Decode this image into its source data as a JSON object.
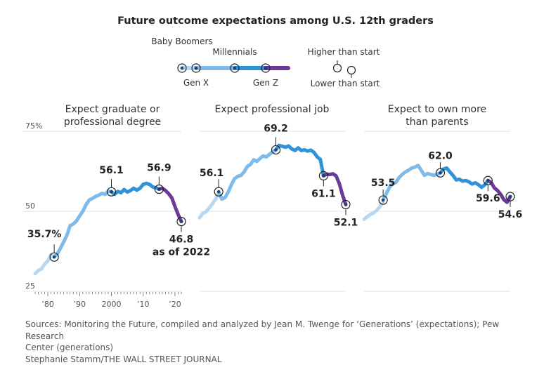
{
  "title": "Future outcome expectations among U.S. 12th graders",
  "legend": {
    "generations": [
      {
        "name": "Baby Boomers",
        "color": "#b9d8f0"
      },
      {
        "name": "Gen X",
        "color": "#7fbbea"
      },
      {
        "name": "Millennials",
        "color": "#2f93d8"
      },
      {
        "name": "Gen Z",
        "color": "#6a3a96"
      }
    ],
    "higher_label": "Higher than start",
    "lower_label": "Lower than start"
  },
  "y_ticks": [
    {
      "value": 75,
      "label": "75%"
    },
    {
      "value": 50,
      "label": "50"
    },
    {
      "value": 25,
      "label": "25"
    }
  ],
  "x_ticks": [
    {
      "year": 1980,
      "label": "’80"
    },
    {
      "year": 1990,
      "label": "’90"
    },
    {
      "year": 2000,
      "label": "2000"
    },
    {
      "year": 2010,
      "label": "’10"
    },
    {
      "year": 2020,
      "label": "’20"
    }
  ],
  "sources": {
    "line1": "Sources: Monitoring the Future, compiled and analyzed by Jean M. Twenge for  ‘Generations’ (expectations); Pew Research",
    "line2": "Center (generations)",
    "credit": "Stephanie Stamm/THE WALL STREET JOURNAL"
  },
  "chart_data": [
    {
      "type": "line",
      "title_lines": [
        "Expect graduate or",
        "professional degree"
      ],
      "ylim": [
        25,
        75
      ],
      "xlim": [
        1976,
        2022
      ],
      "series": [
        {
          "name": "Baby Boomers",
          "color": "#b9d8f0",
          "x": [
            1976,
            1977,
            1978,
            1979,
            1980,
            1981,
            1982
          ],
          "y": [
            30.5,
            31.5,
            32.0,
            33.5,
            34.5,
            36.5,
            35.7
          ]
        },
        {
          "name": "Gen X",
          "color": "#7fbbea",
          "x": [
            1982,
            1983,
            1984,
            1985,
            1986,
            1987,
            1988,
            1989,
            1990,
            1991,
            1992,
            1993,
            1994,
            1995,
            1996,
            1997,
            1998,
            1999,
            2000
          ],
          "y": [
            35.7,
            36.8,
            38.5,
            40.5,
            42.5,
            45.5,
            46.0,
            47.0,
            48.5,
            50.0,
            52.0,
            53.5,
            54.0,
            54.6,
            55.0,
            55.6,
            55.3,
            56.3,
            56.1
          ]
        },
        {
          "name": "Millennials",
          "color": "#2f93d8",
          "x": [
            2000,
            2001,
            2002,
            2003,
            2004,
            2005,
            2006,
            2007,
            2008,
            2009,
            2010,
            2011,
            2012,
            2013,
            2014,
            2015
          ],
          "y": [
            56.1,
            55.3,
            56.2,
            55.8,
            56.8,
            56.0,
            56.5,
            57.2,
            56.6,
            57.2,
            58.4,
            58.7,
            58.4,
            57.6,
            57.3,
            56.9
          ]
        },
        {
          "name": "Gen Z",
          "color": "#6a3a96",
          "x": [
            2015,
            2016,
            2017,
            2018,
            2019,
            2020,
            2021,
            2022
          ],
          "y": [
            56.9,
            57.2,
            56.5,
            55.5,
            54.2,
            51.5,
            49.0,
            46.8
          ]
        }
      ],
      "annotations": [
        {
          "x": 1982,
          "y": 35.7,
          "label": "35.7%",
          "type": "lower"
        },
        {
          "x": 2000,
          "y": 56.1,
          "label": "56.1",
          "type": "lower"
        },
        {
          "x": 2015,
          "y": 56.9,
          "label": "56.9",
          "type": "lower"
        },
        {
          "x": 2022,
          "y": 46.8,
          "label": "46.8",
          "label2": "as of 2022",
          "type": "lower"
        }
      ]
    },
    {
      "type": "line",
      "title_lines": [
        "Expect professional job"
      ],
      "ylim": [
        25,
        75
      ],
      "xlim": [
        1976,
        2022
      ],
      "series": [
        {
          "name": "Baby Boomers",
          "color": "#b9d8f0",
          "x": [
            1976,
            1977,
            1978,
            1979,
            1980,
            1981,
            1982
          ],
          "y": [
            48.0,
            49.3,
            49.8,
            51.0,
            52.3,
            53.7,
            55.8
          ]
        },
        {
          "name": "Gen X",
          "color": "#7fbbea",
          "x": [
            1982,
            1983,
            1984,
            1985,
            1986,
            1987,
            1988,
            1989,
            1990,
            1991,
            1992,
            1993,
            1994,
            1995,
            1996,
            1997,
            1998,
            1999,
            2000
          ],
          "y": [
            56.1,
            53.8,
            54.3,
            56.0,
            58.3,
            60.2,
            60.9,
            61.2,
            62.3,
            64.0,
            64.6,
            66.1,
            65.6,
            66.5,
            67.3,
            67.0,
            67.8,
            68.6,
            69.2
          ]
        },
        {
          "name": "Millennials",
          "color": "#2f93d8",
          "x": [
            2000,
            2001,
            2002,
            2003,
            2004,
            2005,
            2006,
            2007,
            2008,
            2009,
            2010,
            2011,
            2012,
            2013,
            2014,
            2015
          ],
          "y": [
            69.2,
            70.6,
            70.3,
            70.0,
            70.4,
            69.5,
            69.0,
            69.8,
            69.0,
            69.2,
            68.8,
            69.1,
            68.4,
            67.0,
            66.2,
            61.1
          ]
        },
        {
          "name": "Gen Z",
          "color": "#6a3a96",
          "x": [
            2015,
            2016,
            2017,
            2018,
            2019,
            2020,
            2021,
            2022
          ],
          "y": [
            61.1,
            61.6,
            61.5,
            61.7,
            61.0,
            58.5,
            55.0,
            52.1
          ]
        }
      ],
      "annotations": [
        {
          "x": 1982,
          "y": 56.1,
          "label": "56.1",
          "type": "lower"
        },
        {
          "x": 2000,
          "y": 69.2,
          "label": "69.2",
          "type": "lower"
        },
        {
          "x": 2015,
          "y": 61.1,
          "label": "61.1",
          "type": "lower"
        },
        {
          "x": 2022,
          "y": 52.1,
          "label": "52.1",
          "type": "lower"
        }
      ]
    },
    {
      "type": "line",
      "title_lines": [
        "Expect to own more",
        "than parents"
      ],
      "ylim": [
        25,
        75
      ],
      "xlim": [
        1976,
        2022
      ],
      "series": [
        {
          "name": "Baby Boomers",
          "color": "#b9d8f0",
          "x": [
            1976,
            1977,
            1978,
            1979,
            1980,
            1981,
            1982
          ],
          "y": [
            47.5,
            48.3,
            49.0,
            49.5,
            50.3,
            51.5,
            53.0
          ]
        },
        {
          "name": "Gen X",
          "color": "#7fbbea",
          "x": [
            1982,
            1983,
            1984,
            1985,
            1986,
            1987,
            1988,
            1989,
            1990,
            1991,
            1992,
            1993,
            1994,
            1995,
            1996,
            1997,
            1998,
            1999,
            2000
          ],
          "y": [
            53.5,
            55.5,
            57.5,
            58.7,
            59.0,
            60.5,
            61.5,
            62.3,
            62.8,
            63.5,
            63.8,
            64.3,
            62.8,
            61.2,
            61.8,
            61.5,
            61.2,
            61.6,
            62.0
          ]
        },
        {
          "name": "Millennials",
          "color": "#2f93d8",
          "x": [
            2000,
            2001,
            2002,
            2003,
            2004,
            2005,
            2006,
            2007,
            2008,
            2009,
            2010,
            2011,
            2012,
            2013,
            2014,
            2015
          ],
          "y": [
            62.0,
            63.2,
            63.5,
            62.3,
            61.2,
            59.8,
            60.0,
            59.4,
            59.6,
            59.2,
            58.5,
            58.9,
            58.3,
            57.5,
            58.3,
            59.6
          ]
        },
        {
          "name": "Gen Z",
          "color": "#6a3a96",
          "x": [
            2015,
            2016,
            2017,
            2018,
            2019,
            2020,
            2021,
            2022
          ],
          "y": [
            59.6,
            59.0,
            57.3,
            56.5,
            55.3,
            53.6,
            52.8,
            54.6
          ]
        }
      ],
      "annotations": [
        {
          "x": 1982,
          "y": 53.5,
          "label": "53.5",
          "type": "higher"
        },
        {
          "x": 2000,
          "y": 62.0,
          "label": "62.0",
          "type": "higher"
        },
        {
          "x": 2015,
          "y": 59.6,
          "label": "59.6",
          "type": "lower"
        },
        {
          "x": 2022,
          "y": 54.6,
          "label": "54.6",
          "type": "lower"
        }
      ]
    }
  ]
}
